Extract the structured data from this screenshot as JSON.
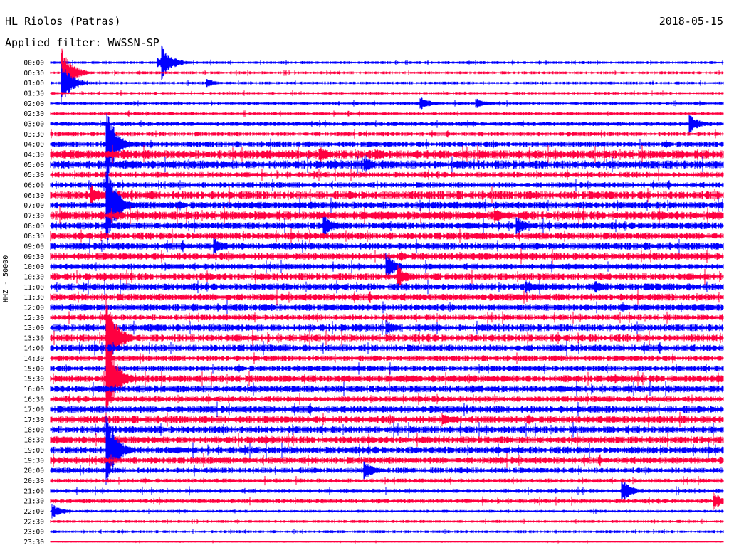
{
  "header": {
    "station": "HL Riolos (Patras)",
    "filter": "Applied filter: WWSSN-SP",
    "date": "2018-05-15"
  },
  "chart_data": {
    "type": "line",
    "title": "HL Riolos (Patras)",
    "subtitle": "Applied filter: WWSSN-SP",
    "ylabel": "HHZ - 50000",
    "xlabel": "",
    "colors": [
      "#0000ff",
      "#ff0040"
    ],
    "grid": false,
    "rows": [
      "00:00",
      "00:30",
      "01:00",
      "01:30",
      "02:00",
      "02:30",
      "03:00",
      "03:30",
      "04:00",
      "04:30",
      "05:00",
      "05:30",
      "06:00",
      "06:30",
      "07:00",
      "07:30",
      "08:00",
      "08:30",
      "09:00",
      "09:30",
      "10:00",
      "10:30",
      "11:00",
      "11:30",
      "12:00",
      "12:30",
      "13:00",
      "13:30",
      "14:00",
      "14:30",
      "15:00",
      "15:30",
      "16:00",
      "16:30",
      "17:00",
      "17:30",
      "18:00",
      "18:30",
      "19:00",
      "19:30",
      "20:00",
      "20:30",
      "21:00",
      "21:30",
      "22:00",
      "22:30",
      "23:00",
      "23:30"
    ],
    "noise_level": [
      2,
      2,
      2,
      2,
      2,
      2,
      3,
      3,
      4,
      6,
      6,
      4,
      4,
      6,
      5,
      6,
      5,
      5,
      5,
      5,
      4,
      5,
      5,
      5,
      5,
      4,
      5,
      5,
      5,
      4,
      4,
      5,
      5,
      4,
      5,
      5,
      5,
      5,
      5,
      5,
      4,
      3,
      3,
      3,
      2,
      2,
      2,
      1
    ],
    "events": [
      {
        "row": 0,
        "minute": 5,
        "amp": 22
      },
      {
        "row": 0,
        "minute": 4.8,
        "amp": 8
      },
      {
        "row": 1,
        "minute": 0.5,
        "amp": 35
      },
      {
        "row": 2,
        "minute": 0.5,
        "amp": 30
      },
      {
        "row": 2,
        "minute": 7,
        "amp": 6
      },
      {
        "row": 4,
        "minute": 16.5,
        "amp": 10
      },
      {
        "row": 4,
        "minute": 19,
        "amp": 7
      },
      {
        "row": 6,
        "minute": 28.5,
        "amp": 14
      },
      {
        "row": 8,
        "minute": 2.5,
        "amp": 50
      },
      {
        "row": 9,
        "minute": 12,
        "amp": 12
      },
      {
        "row": 9,
        "minute": 14.5,
        "amp": 9
      },
      {
        "row": 10,
        "minute": 14,
        "amp": 12
      },
      {
        "row": 13,
        "minute": 1.8,
        "amp": 16
      },
      {
        "row": 14,
        "minute": 2.5,
        "amp": 60
      },
      {
        "row": 15,
        "minute": 19.8,
        "amp": 12
      },
      {
        "row": 16,
        "minute": 12.2,
        "amp": 16
      },
      {
        "row": 16,
        "minute": 20.8,
        "amp": 14
      },
      {
        "row": 18,
        "minute": 7.3,
        "amp": 12
      },
      {
        "row": 20,
        "minute": 15,
        "amp": 18
      },
      {
        "row": 21,
        "minute": 15.5,
        "amp": 16
      },
      {
        "row": 22,
        "minute": 21.2,
        "amp": 10
      },
      {
        "row": 22,
        "minute": 24.3,
        "amp": 10
      },
      {
        "row": 26,
        "minute": 15,
        "amp": 10
      },
      {
        "row": 27,
        "minute": 2.5,
        "amp": 55
      },
      {
        "row": 31,
        "minute": 2.5,
        "amp": 60
      },
      {
        "row": 35,
        "minute": 17.5,
        "amp": 10
      },
      {
        "row": 38,
        "minute": 2.5,
        "amp": 50
      },
      {
        "row": 40,
        "minute": 14,
        "amp": 14
      },
      {
        "row": 42,
        "minute": 25.5,
        "amp": 16
      },
      {
        "row": 43,
        "minute": 29.6,
        "amp": 12
      },
      {
        "row": 44,
        "minute": 0.1,
        "amp": 10
      }
    ]
  }
}
